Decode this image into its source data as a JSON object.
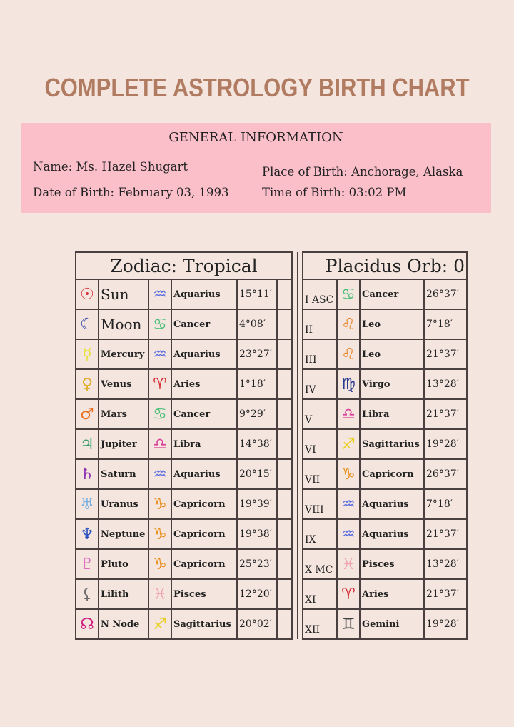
{
  "title": "COMPLETE ASTROLOGY BIRTH CHART",
  "general": {
    "heading": "GENERAL INFORMATION",
    "name": "Name: Ms. Hazel Shugart",
    "date_of_birth": "Date of Birth: February 03, 1993",
    "place_of_birth": "Place of Birth: Anchorage, Alaska",
    "time_of_birth": "Time of Birth: 03:02 PM"
  },
  "zodiac_header": "Zodiac: Tropical",
  "houses_header": "Placidus Orb: 0",
  "planets": [
    {
      "glyph": "☉",
      "icon": "sun-icon",
      "color": "#d6343c",
      "name": "Sun",
      "sign_glyph": "♒",
      "sign_icon": "aquarius-icon",
      "sign_color": "#5a6ee0",
      "sign": "Aquarius",
      "degree": "15°11′"
    },
    {
      "glyph": "☾",
      "icon": "moon-icon",
      "color": "#2a3fa8",
      "name": "Moon",
      "sign_glyph": "♋",
      "sign_icon": "cancer-icon",
      "sign_color": "#4cbf7a",
      "sign": "Cancer",
      "degree": "4°08′"
    },
    {
      "glyph": "☿",
      "icon": "mercury-icon",
      "color": "#e8e030",
      "name": "Mercury",
      "sign_glyph": "♒",
      "sign_icon": "aquarius-icon",
      "sign_color": "#5a6ee0",
      "sign": "Aquarius",
      "degree": "23°27′"
    },
    {
      "glyph": "♀",
      "icon": "venus-icon",
      "color": "#e0b030",
      "name": "Venus",
      "sign_glyph": "♈",
      "sign_icon": "aries-icon",
      "sign_color": "#d6343c",
      "sign": "Aries",
      "degree": "1°18′"
    },
    {
      "glyph": "♂",
      "icon": "mars-icon",
      "color": "#e87020",
      "name": "Mars",
      "sign_glyph": "♋",
      "sign_icon": "cancer-icon",
      "sign_color": "#4cbf7a",
      "sign": "Cancer",
      "degree": "9°29′"
    },
    {
      "glyph": "♃",
      "icon": "jupiter-icon",
      "color": "#3aa070",
      "name": "Jupiter",
      "sign_glyph": "♎",
      "sign_icon": "libra-icon",
      "sign_color": "#d8409a",
      "sign": "Libra",
      "degree": "14°38′"
    },
    {
      "glyph": "♄",
      "icon": "saturn-icon",
      "color": "#8a2ab0",
      "name": "Saturn",
      "sign_glyph": "♒",
      "sign_icon": "aquarius-icon",
      "sign_color": "#5a6ee0",
      "sign": "Aquarius",
      "degree": "20°15′"
    },
    {
      "glyph": "♅",
      "icon": "uranus-icon",
      "color": "#7ab0e0",
      "name": "Uranus",
      "sign_glyph": "♑",
      "sign_icon": "capricorn-icon",
      "sign_color": "#e89020",
      "sign": "Capricorn",
      "degree": "19°39′"
    },
    {
      "glyph": "♆",
      "icon": "neptune-icon",
      "color": "#2a50c0",
      "name": "Neptune",
      "sign_glyph": "♑",
      "sign_icon": "capricorn-icon",
      "sign_color": "#e89020",
      "sign": "Capricorn",
      "degree": "19°38′"
    },
    {
      "glyph": "♇",
      "icon": "pluto-icon",
      "color": "#e070c0",
      "name": "Pluto",
      "sign_glyph": "♑",
      "sign_icon": "capricorn-icon",
      "sign_color": "#e89020",
      "sign": "Capricorn",
      "degree": "25°23′"
    },
    {
      "glyph": "⚸",
      "icon": "lilith-icon",
      "color": "#707070",
      "name": "Lilith",
      "sign_glyph": "♓",
      "sign_icon": "pisces-icon",
      "sign_color": "#f0a0b0",
      "sign": "Pisces",
      "degree": "12°20′"
    },
    {
      "glyph": "☊",
      "icon": "north-node-icon",
      "color": "#d02080",
      "name": "N Node",
      "sign_glyph": "♐",
      "sign_icon": "sagittarius-icon",
      "sign_color": "#e8d020",
      "sign": "Sagittarius",
      "degree": "20°02′"
    }
  ],
  "houses": [
    {
      "house": "I ASC",
      "sign_glyph": "♋",
      "sign_icon": "cancer-icon",
      "sign_color": "#4cbf7a",
      "sign": "Cancer",
      "degree": "26°37′"
    },
    {
      "house": "II",
      "sign_glyph": "♌",
      "sign_icon": "leo-icon",
      "sign_color": "#e88a30",
      "sign": "Leo",
      "degree": "7°18′"
    },
    {
      "house": "III",
      "sign_glyph": "♌",
      "sign_icon": "leo-icon",
      "sign_color": "#e88a30",
      "sign": "Leo",
      "degree": "21°37′"
    },
    {
      "house": "IV",
      "sign_glyph": "♍",
      "sign_icon": "virgo-icon",
      "sign_color": "#2a3a90",
      "sign": "Virgo",
      "degree": "13°28′"
    },
    {
      "house": "V",
      "sign_glyph": "♎",
      "sign_icon": "libra-icon",
      "sign_color": "#d8409a",
      "sign": "Libra",
      "degree": "21°37′"
    },
    {
      "house": "VI",
      "sign_glyph": "♐",
      "sign_icon": "sagittarius-icon",
      "sign_color": "#e8d020",
      "sign": "Sagittarius",
      "degree": "19°28′"
    },
    {
      "house": "VII",
      "sign_glyph": "♑",
      "sign_icon": "capricorn-icon",
      "sign_color": "#e89020",
      "sign": "Capricorn",
      "degree": "26°37′"
    },
    {
      "house": "VIII",
      "sign_glyph": "♒",
      "sign_icon": "aquarius-icon",
      "sign_color": "#5a6ee0",
      "sign": "Aquarius",
      "degree": "7°18′"
    },
    {
      "house": "IX",
      "sign_glyph": "♒",
      "sign_icon": "aquarius-icon",
      "sign_color": "#5a6ee0",
      "sign": "Aquarius",
      "degree": "21°37′"
    },
    {
      "house": "X MC",
      "sign_glyph": "♓",
      "sign_icon": "pisces-icon",
      "sign_color": "#f0a0b0",
      "sign": "Pisces",
      "degree": "13°28′"
    },
    {
      "house": "XI",
      "sign_glyph": "♈",
      "sign_icon": "aries-icon",
      "sign_color": "#d6343c",
      "sign": "Aries",
      "degree": "21°37′"
    },
    {
      "house": "XII",
      "sign_glyph": "♊",
      "sign_icon": "gemini-icon",
      "sign_color": "#444444",
      "sign": "Gemini",
      "degree": "19°28′"
    }
  ]
}
